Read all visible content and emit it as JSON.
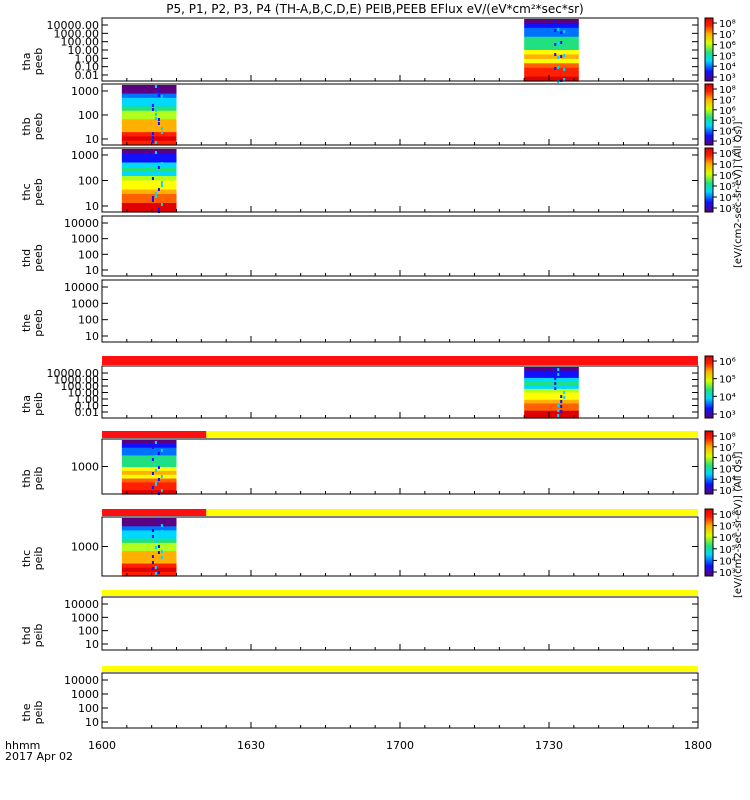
{
  "title": "P5, P1, P2, P3, P4 (TH-A,B,C,D,E) PEIB,PEEB EFlux eV/(eV*cm²*sec*sr)",
  "units_top": "[eV/(cm2-sec-sr-eV)] (All Qs)]",
  "units_bottom": "[eV/(cm2-sec-sr-eV)] (All Qs)]",
  "time_axis": {
    "label": "hhmm",
    "date": "2017 Apr 02",
    "ticks": [
      "1600",
      "1630",
      "1700",
      "1730",
      "1800"
    ],
    "tick_minutes": [
      0,
      30,
      60,
      90,
      120
    ],
    "range_minutes": [
      0,
      120
    ]
  },
  "colors": {
    "red_bar": "#ff1010",
    "yellow_bar": "#ffff00",
    "black": "#000000"
  },
  "chart_data": [
    {
      "type": "heatmap",
      "probe": "tha",
      "product": "peeb",
      "ylabel": [
        "tha",
        "peeb"
      ],
      "yscale": "log",
      "yticks": [
        "10000.00",
        "1000.00",
        "100.00",
        "10.00",
        "1.00",
        "0.10",
        "0.01"
      ],
      "data_intervals": [
        [
          85,
          96
        ]
      ],
      "bar": null,
      "colorbar": {
        "labels": [
          "10⁸",
          "10⁷",
          "10⁶",
          "10⁵",
          "10⁴",
          "10³"
        ]
      }
    },
    {
      "type": "heatmap",
      "probe": "thb",
      "product": "peeb",
      "ylabel": [
        "thb",
        "peeb"
      ],
      "yscale": "log",
      "yticks": [
        "1000",
        "100",
        "10"
      ],
      "data_intervals": [
        [
          4,
          15
        ]
      ],
      "bar": null,
      "colorbar": {
        "labels": [
          "10⁸",
          "10⁷",
          "10⁶",
          "10⁵",
          "10⁴",
          "10³"
        ]
      }
    },
    {
      "type": "heatmap",
      "probe": "thc",
      "product": "peeb",
      "ylabel": [
        "thc",
        "peeb"
      ],
      "yscale": "log",
      "yticks": [
        "1000",
        "100",
        "10"
      ],
      "data_intervals": [
        [
          4,
          15
        ]
      ],
      "bar": null,
      "colorbar": {
        "labels": [
          "10⁸",
          "10⁷",
          "10⁶",
          "10⁵",
          "10⁴",
          "10³"
        ]
      }
    },
    {
      "type": "heatmap",
      "probe": "thd",
      "product": "peeb",
      "ylabel": [
        "thd",
        "peeb"
      ],
      "yscale": "log",
      "yticks": [
        "10000",
        "1000",
        "100",
        "10"
      ],
      "data_intervals": [],
      "bar": null,
      "colorbar": null
    },
    {
      "type": "heatmap",
      "probe": "the",
      "product": "peeb",
      "ylabel": [
        "the",
        "peeb"
      ],
      "yscale": "log",
      "yticks": [
        "10000",
        "1000",
        "100",
        "10"
      ],
      "data_intervals": [],
      "bar": null,
      "colorbar": null
    },
    {
      "type": "heatmap",
      "probe": "tha",
      "product": "peib",
      "ylabel": [
        "tha",
        "peib"
      ],
      "yscale": "log",
      "yticks": [
        "10000.00",
        "1000.00",
        "100.00",
        "10.00",
        "1.00",
        "0.10",
        "0.01"
      ],
      "data_intervals": [
        [
          85,
          96
        ]
      ],
      "bar": [
        {
          "from": 0,
          "to": 120,
          "color": "red"
        }
      ],
      "colorbar": {
        "labels": [
          "10⁶",
          "10⁵",
          "10⁴",
          "10³"
        ]
      }
    },
    {
      "type": "heatmap",
      "probe": "thb",
      "product": "peib",
      "ylabel": [
        "thb",
        "peib"
      ],
      "yscale": "log",
      "yticks": [
        "1000"
      ],
      "data_intervals": [
        [
          4,
          15
        ]
      ],
      "bar": [
        {
          "from": 0,
          "to": 21,
          "color": "red"
        },
        {
          "from": 21,
          "to": 120,
          "color": "yellow"
        }
      ],
      "colorbar": {
        "labels": [
          "10⁸",
          "10⁷",
          "10⁶",
          "10⁵",
          "10⁴",
          "10³"
        ]
      }
    },
    {
      "type": "heatmap",
      "probe": "thc",
      "product": "peib",
      "ylabel": [
        "thc",
        "peib"
      ],
      "yscale": "log",
      "yticks": [
        "1000"
      ],
      "data_intervals": [
        [
          4,
          15
        ]
      ],
      "bar": [
        {
          "from": 0,
          "to": 21,
          "color": "red"
        },
        {
          "from": 21,
          "to": 120,
          "color": "yellow"
        }
      ],
      "colorbar": {
        "labels": [
          "10⁸",
          "10⁷",
          "10⁶",
          "10⁵",
          "10⁴",
          "10³"
        ]
      }
    },
    {
      "type": "heatmap",
      "probe": "thd",
      "product": "peib",
      "ylabel": [
        "thd",
        "peib"
      ],
      "yscale": "log",
      "yticks": [
        "10000",
        "1000",
        "100",
        "10"
      ],
      "data_intervals": [],
      "bar": [
        {
          "from": 0,
          "to": 120,
          "color": "yellow"
        }
      ],
      "colorbar": null
    },
    {
      "type": "heatmap",
      "probe": "the",
      "product": "peib",
      "ylabel": [
        "the",
        "peib"
      ],
      "yscale": "log",
      "yticks": [
        "10000",
        "1000",
        "100",
        "10"
      ],
      "data_intervals": [],
      "bar": [
        {
          "from": 0,
          "to": 120,
          "color": "yellow"
        }
      ],
      "colorbar": null
    }
  ]
}
